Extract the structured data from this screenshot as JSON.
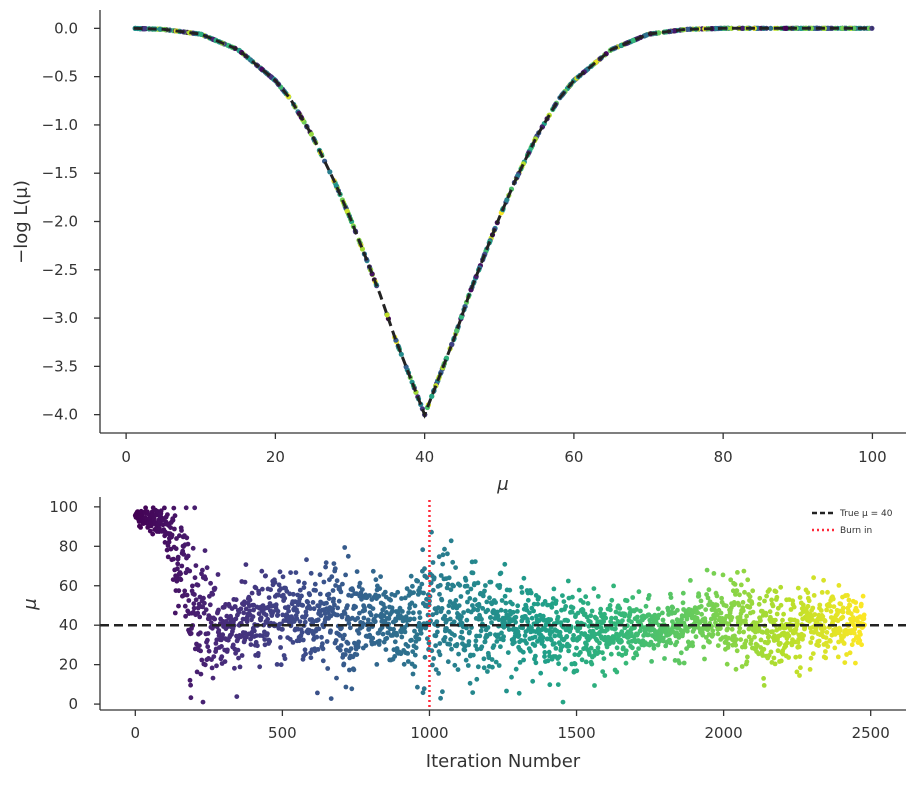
{
  "colors": {
    "axis": "#333333",
    "true_line": "#222222",
    "burn_in": "#ff2a3a",
    "viridis": [
      "#440154",
      "#482878",
      "#3e4989",
      "#31688e",
      "#26828e",
      "#1f9e89",
      "#35b779",
      "#6ece58",
      "#b5de2b",
      "#fde725"
    ]
  },
  "chart_data": [
    {
      "type": "scatter",
      "description_of_marks": "likelihood curve sampled by MCMC points",
      "xlabel": "μ",
      "ylabel": "−log L(μ)",
      "xlim": [
        -3.5,
        104.5
      ],
      "ylim": [
        -4.19,
        0.19
      ],
      "xticks": [
        0,
        20,
        40,
        60,
        80,
        100
      ],
      "xtick_labels": [
        "0",
        "20",
        "40",
        "60",
        "80",
        "100"
      ],
      "yticks": [
        0.0,
        -0.5,
        -1.0,
        -1.5,
        -2.0,
        -2.5,
        -3.0,
        -3.5,
        -4.0
      ],
      "ytick_labels": [
        "0.0",
        "−0.5",
        "−1.0",
        "−1.5",
        "−2.0",
        "−2.5",
        "−3.0",
        "−3.5",
        "−4.0"
      ],
      "curve": {
        "style": "dashed",
        "x": [
          1,
          5,
          10,
          15,
          20,
          22,
          25,
          28,
          30,
          32,
          34,
          36,
          38,
          40,
          42,
          44,
          46,
          48,
          50,
          52,
          55,
          58,
          60,
          65,
          70,
          75,
          80,
          90,
          100
        ],
        "y": [
          0.0,
          -0.01,
          -0.06,
          -0.22,
          -0.54,
          -0.73,
          -1.12,
          -1.6,
          -1.96,
          -2.35,
          -2.75,
          -3.2,
          -3.6,
          -4.0,
          -3.6,
          -3.2,
          -2.75,
          -2.35,
          -1.96,
          -1.6,
          -1.12,
          -0.73,
          -0.54,
          -0.22,
          -0.06,
          -0.01,
          0.0,
          0.0,
          0.0
        ]
      }
    },
    {
      "type": "scatter",
      "xlabel": "Iteration Number",
      "ylabel": "μ",
      "xlim": [
        -120,
        2620
      ],
      "ylim": [
        -3,
        105
      ],
      "xticks": [
        0,
        500,
        1000,
        1500,
        2000,
        2500
      ],
      "xtick_labels": [
        "0",
        "500",
        "1000",
        "1500",
        "2000",
        "2500"
      ],
      "yticks": [
        0,
        20,
        40,
        60,
        80,
        100
      ],
      "ytick_labels": [
        "0",
        "20",
        "40",
        "60",
        "80",
        "100"
      ],
      "true_value": 40,
      "burn_in": 1000,
      "n_points": 2480,
      "trace_profile": {
        "iterations": [
          0,
          100,
          200,
          300,
          500,
          700,
          900,
          1000,
          1200,
          1400,
          1600,
          1800,
          2000,
          2200,
          2480
        ],
        "center": [
          96,
          90,
          50,
          38,
          45,
          45,
          38,
          45,
          42,
          38,
          36,
          38,
          43,
          38,
          40
        ],
        "spread": [
          2,
          5,
          22,
          8,
          12,
          15,
          8,
          20,
          12,
          10,
          9,
          6,
          10,
          10,
          7
        ]
      },
      "legend": {
        "location": "upper right",
        "entries": [
          {
            "label": "True μ = 40",
            "style": "dashed"
          },
          {
            "label": "Burn in",
            "style": "dotted"
          }
        ]
      }
    }
  ]
}
